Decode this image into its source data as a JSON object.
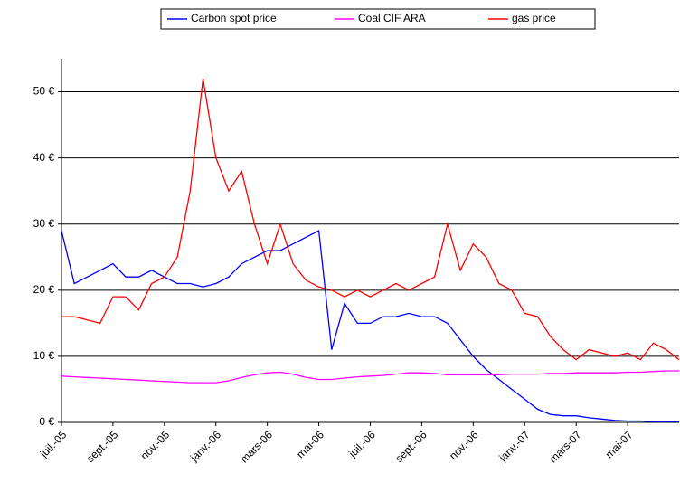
{
  "chart_data": {
    "type": "line",
    "categories": [
      "juil.-05",
      null,
      null,
      null,
      "sept.-05",
      null,
      null,
      null,
      "nov.-05",
      null,
      null,
      null,
      "janv.-06",
      null,
      null,
      null,
      "mars-06",
      null,
      null,
      null,
      "mai-06",
      null,
      null,
      null,
      "juil.-06",
      null,
      null,
      null,
      "sept.-06",
      null,
      null,
      null,
      "nov.-06",
      null,
      null,
      null,
      "janv.-07",
      null,
      null,
      null,
      "mars-07",
      null,
      null,
      null,
      "mai-07",
      null,
      null,
      null,
      null
    ],
    "series": [
      {
        "name": "Carbon spot price",
        "color": "#0000ff",
        "values": [
          29,
          21,
          22,
          23,
          24,
          22,
          22,
          23,
          22,
          21,
          21,
          20.5,
          21,
          22,
          24,
          25,
          26,
          26,
          27,
          28,
          29,
          11,
          18,
          15,
          15,
          16,
          16,
          16.5,
          16,
          16,
          15,
          12.5,
          10,
          8,
          6.5,
          5,
          3.5,
          2,
          1.2,
          1,
          1,
          0.7,
          0.5,
          0.3,
          0.2,
          0.2,
          0.1,
          0.1,
          0.1
        ]
      },
      {
        "name": "Coal CIF ARA",
        "color": "#ff00ff",
        "values": [
          7,
          6.9,
          6.8,
          6.7,
          6.6,
          6.5,
          6.4,
          6.3,
          6.2,
          6.1,
          6,
          6,
          6,
          6.3,
          6.8,
          7.2,
          7.5,
          7.6,
          7.3,
          6.8,
          6.5,
          6.5,
          6.7,
          6.9,
          7,
          7.1,
          7.3,
          7.5,
          7.5,
          7.4,
          7.2,
          7.2,
          7.2,
          7.2,
          7.2,
          7.3,
          7.3,
          7.3,
          7.4,
          7.4,
          7.5,
          7.5,
          7.5,
          7.5,
          7.6,
          7.6,
          7.7,
          7.8,
          7.8
        ]
      },
      {
        "name": "gas price",
        "color": "#ff0000",
        "values": [
          16,
          16,
          15.5,
          15,
          19,
          19,
          17,
          21,
          22,
          25,
          35,
          52,
          40,
          35,
          38,
          30,
          24,
          30,
          24,
          21.5,
          20.5,
          20,
          19,
          20,
          19,
          20,
          21,
          20,
          21,
          22,
          30,
          23,
          27,
          25,
          21,
          20,
          16.5,
          16,
          13,
          11,
          9.5,
          11,
          10.5,
          10,
          10.5,
          9.5,
          12,
          11,
          9.5
        ]
      }
    ],
    "ylim": [
      0,
      55
    ],
    "yticks": [
      {
        "value": 0,
        "label": "0 €"
      },
      {
        "value": 10,
        "label": "10 €"
      },
      {
        "value": 20,
        "label": "20 €"
      },
      {
        "value": 30,
        "label": "30 €"
      },
      {
        "value": 40,
        "label": "40 €"
      },
      {
        "value": 50,
        "label": "50 €"
      }
    ],
    "grid": true,
    "legend": "top"
  }
}
